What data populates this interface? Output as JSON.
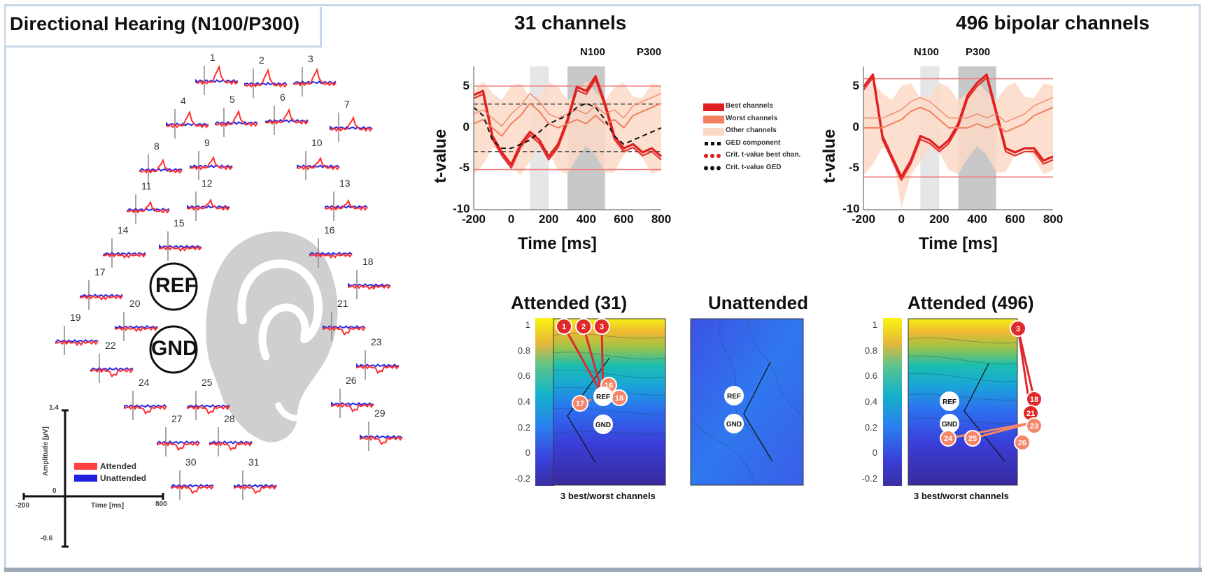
{
  "header": {
    "title": "Directional Hearing (N100/P300)"
  },
  "montage": {
    "channels": [
      "1",
      "2",
      "3",
      "4",
      "5",
      "6",
      "7",
      "8",
      "9",
      "10",
      "11",
      "12",
      "13",
      "14",
      "15",
      "16",
      "17",
      "18",
      "19",
      "20",
      "21",
      "22",
      "23",
      "24",
      "25",
      "26",
      "27",
      "28",
      "29",
      "30",
      "31"
    ],
    "ref_label": "REF",
    "gnd_label": "GND",
    "scale_bar": {
      "ylabel": "Amplitude [µV]",
      "xlabel": "Time [ms]",
      "y_ticks": [
        "1.4",
        "0",
        "-0.6"
      ],
      "x_ticks": [
        "-200",
        "800"
      ],
      "legend": [
        {
          "label": "Attended",
          "color": "#ff3b3b"
        },
        {
          "label": "Unattended",
          "color": "#2020e0"
        }
      ]
    },
    "ear_icon": "ear-icon"
  },
  "legend_31": [
    {
      "label": "Best channels",
      "style": "solid-thick",
      "color": "#e02020"
    },
    {
      "label": "Worst channels",
      "style": "solid",
      "color": "#f08060"
    },
    {
      "label": "Other channels",
      "style": "band",
      "color": "#fbd9c6"
    },
    {
      "label": "GED component",
      "style": "dashed",
      "color": "#111111"
    },
    {
      "label": "Crit. t-value best chan.",
      "style": "dotted",
      "color": "#e02020"
    },
    {
      "label": "Crit. t-value GED",
      "style": "dotted",
      "color": "#111111"
    }
  ],
  "chart_data": [
    {
      "type": "line",
      "title": "31 channels",
      "xlabel": "Time [ms]",
      "ylabel": "t-value",
      "xlim": [
        -200,
        800
      ],
      "ylim": [
        -10,
        7.5
      ],
      "x_ticks": [
        "-200",
        "0",
        "200",
        "400",
        "600",
        "800"
      ],
      "y_ticks": [
        "5",
        "0",
        "-5",
        "-10"
      ],
      "shaded_windows": [
        {
          "label": "N100",
          "x0": 100,
          "x1": 200,
          "color": "#e6e6e6"
        },
        {
          "label": "P300",
          "x0": 300,
          "x1": 500,
          "color": "#c8c8c8"
        }
      ],
      "thresholds": [
        {
          "name": "Crit. t-value best chan.",
          "values": [
            5.1,
            -5.1
          ],
          "color": "#f08080"
        },
        {
          "name": "Crit. t-value GED",
          "values": [
            2.9,
            -2.9
          ],
          "color": "#555555"
        }
      ],
      "x": [
        -200,
        -150,
        -100,
        -50,
        0,
        50,
        100,
        150,
        200,
        250,
        300,
        350,
        400,
        450,
        500,
        550,
        600,
        650,
        700,
        750,
        800
      ],
      "series": [
        {
          "name": "Best channels",
          "values": [
            4.0,
            4.5,
            -1.0,
            -3.0,
            -4.5,
            -2.0,
            -0.5,
            -1.5,
            -3.5,
            -2.0,
            1.0,
            5.0,
            4.5,
            6.3,
            3.0,
            -1.0,
            -2.5,
            -2.0,
            -3.0,
            -2.5,
            -3.5
          ]
        },
        {
          "name": "Worst channels",
          "values": [
            0.5,
            1.0,
            0.0,
            -1.0,
            0.5,
            1.5,
            3.0,
            2.0,
            0.5,
            0.0,
            0.5,
            1.0,
            0.5,
            1.5,
            0.5,
            1.0,
            0.0,
            1.5,
            2.0,
            2.5,
            3.0
          ]
        },
        {
          "name": "GED component",
          "values": [
            2.5,
            1.5,
            -1.5,
            -2.5,
            -2.5,
            -2.0,
            -1.5,
            -0.5,
            0.5,
            1.0,
            1.5,
            2.5,
            3.0,
            2.5,
            1.0,
            -1.0,
            -2.0,
            -1.5,
            -1.0,
            -0.5,
            0.0
          ]
        }
      ]
    },
    {
      "type": "line",
      "title": "496 bipolar channels",
      "xlabel": "Time [ms]",
      "ylabel": "t-value",
      "xlim": [
        -200,
        800
      ],
      "ylim": [
        -10,
        7.5
      ],
      "x_ticks": [
        "-200",
        "0",
        "200",
        "400",
        "600",
        "800"
      ],
      "y_ticks": [
        "5",
        "0",
        "-5",
        "-10"
      ],
      "shaded_windows": [
        {
          "label": "N100",
          "x0": 100,
          "x1": 200,
          "color": "#e6e6e6"
        },
        {
          "label": "P300",
          "x0": 300,
          "x1": 500,
          "color": "#c8c8c8"
        }
      ],
      "thresholds": [
        {
          "name": "Crit. t-value best chan.",
          "values": [
            6.0,
            -6.0
          ],
          "color": "#f08080"
        }
      ],
      "x": [
        -200,
        -150,
        -100,
        -50,
        0,
        50,
        100,
        150,
        200,
        250,
        300,
        350,
        400,
        450,
        500,
        550,
        600,
        650,
        700,
        750,
        800
      ],
      "series": [
        {
          "name": "Best channels",
          "values": [
            5.0,
            6.5,
            -1.0,
            -3.5,
            -6.0,
            -4.0,
            -1.0,
            -1.5,
            -2.5,
            -1.5,
            0.5,
            4.0,
            5.5,
            6.5,
            2.0,
            -2.5,
            -3.0,
            -2.5,
            -2.5,
            -4.0,
            -3.5
          ]
        },
        {
          "name": "Worst channels",
          "values": [
            0.0,
            0.0,
            0.0,
            0.5,
            1.0,
            2.0,
            2.5,
            2.0,
            1.0,
            0.0,
            0.0,
            0.0,
            0.5,
            0.0,
            0.5,
            -0.5,
            0.0,
            0.5,
            1.5,
            2.0,
            2.5
          ]
        }
      ]
    }
  ],
  "topoplots": [
    {
      "title": "Attended (31)",
      "colorbar_ticks": [
        "1",
        "0.8",
        "0.6",
        "0.4",
        "0.2",
        "0",
        "-0.2"
      ],
      "caption": "3 best/worst channels",
      "best": [
        "1",
        "2",
        "3"
      ],
      "worst": [
        "16",
        "17",
        "18"
      ]
    },
    {
      "title": "Unattended",
      "caption": ""
    },
    {
      "title": "Attended (496)",
      "colorbar_ticks": [
        "1",
        "0.8",
        "0.6",
        "0.4",
        "0.2",
        "0",
        "-0.2"
      ],
      "caption": "3 best/worst channels",
      "best": [
        "3",
        "18",
        "21"
      ],
      "worst": [
        "23",
        "24",
        "25",
        "26"
      ]
    }
  ],
  "markers": {
    "ref": "REF",
    "gnd": "GND"
  }
}
